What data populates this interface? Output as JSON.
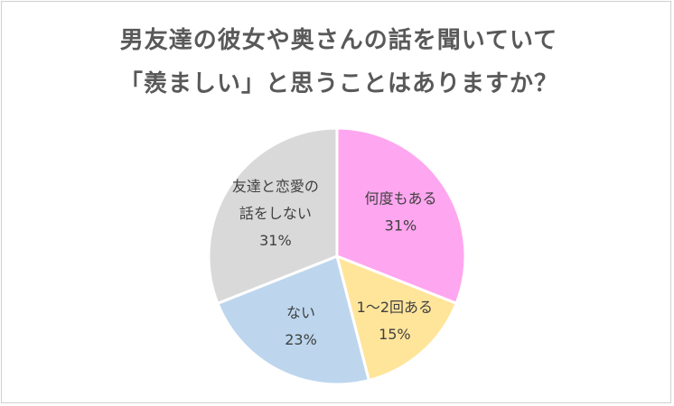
{
  "chart_data": {
    "type": "pie",
    "title_lines": [
      "男友達の彼女や奥さんの話を聞いていて",
      "「羨ましい」と思うことはありますか？"
    ],
    "categories": [
      "何度もある",
      "1〜2回ある",
      "ない",
      "友達と恋愛の話をしない"
    ],
    "label_lines": [
      [
        "何度もある"
      ],
      [
        "1〜2回ある"
      ],
      [
        "ない"
      ],
      [
        "友達と恋愛の",
        "話をしない"
      ]
    ],
    "values": [
      31,
      15,
      23,
      31
    ],
    "value_labels": [
      "31%",
      "15%",
      "23%",
      "31%"
    ],
    "colors": [
      "#ffa6f0",
      "#ffe59a",
      "#bdd6ee",
      "#d9d9d9"
    ],
    "start_angle_deg": 0,
    "direction": "clockwise"
  }
}
